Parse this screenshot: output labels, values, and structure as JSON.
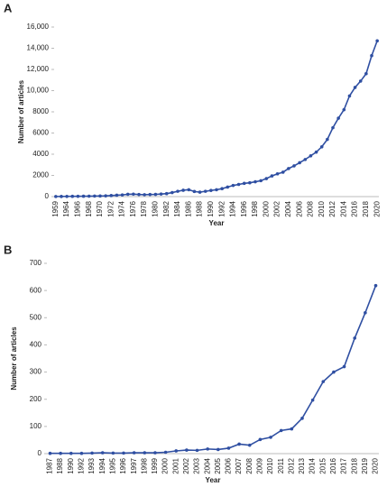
{
  "chart_data": [
    {
      "type": "line",
      "panel": "A",
      "xlabel": "Year",
      "ylabel": "Number of articles",
      "color": "#2f4fa2",
      "categories": [
        "1959",
        null,
        "1964",
        null,
        "1966",
        null,
        "1968",
        null,
        "1970",
        null,
        "1972",
        null,
        "1974",
        null,
        "1976",
        null,
        "1978",
        null,
        "1980",
        null,
        "1982",
        null,
        "1984",
        null,
        "1986",
        null,
        "1988",
        null,
        "1990",
        null,
        "1992",
        null,
        "1994",
        null,
        "1996",
        null,
        "1998",
        null,
        "2000",
        null,
        "2002",
        null,
        "2004",
        null,
        "2006",
        null,
        "2008",
        null,
        "2010",
        null,
        "2012",
        null,
        "2014",
        null,
        "2016",
        null,
        "2018",
        null,
        "2020"
      ],
      "values": [
        10,
        15,
        20,
        25,
        30,
        35,
        40,
        50,
        55,
        70,
        100,
        130,
        160,
        220,
        230,
        200,
        180,
        200,
        210,
        240,
        280,
        380,
        500,
        600,
        650,
        480,
        420,
        500,
        580,
        650,
        750,
        900,
        1050,
        1150,
        1250,
        1300,
        1400,
        1500,
        1700,
        1950,
        2150,
        2300,
        2650,
        2900,
        3200,
        3500,
        3850,
        4200,
        4700,
        5400,
        6500,
        7400,
        8200,
        9500,
        10300,
        10900,
        11600,
        13300,
        14700
      ],
      "ylim": [
        0,
        16000
      ],
      "yticks": [
        0,
        2000,
        4000,
        6000,
        8000,
        {
          "value": 10000,
          "label": "10,000"
        },
        {
          "value": 12000,
          "label": "12,000"
        },
        {
          "value": 14000,
          "label": "14,000"
        },
        {
          "value": 16000,
          "label": "16,000"
        }
      ]
    },
    {
      "type": "line",
      "panel": "B",
      "xlabel": "Year",
      "ylabel": "Number of articles",
      "color": "#2f4fa2",
      "categories": [
        "1987",
        "1988",
        "1990",
        "1992",
        "1993",
        "1994",
        "1995",
        "1996",
        "1997",
        "1998",
        "1999",
        "2000",
        "2001",
        "2002",
        "2003",
        "2004",
        "2005",
        "2006",
        "2007",
        "2008",
        "2009",
        "2010",
        "2011",
        "2012",
        "2013",
        "2014",
        "2015",
        "2016",
        "2017",
        "2018",
        "2019",
        "2020"
      ],
      "values": [
        1,
        1,
        1,
        1,
        2,
        3,
        2,
        2,
        3,
        3,
        3,
        5,
        10,
        13,
        12,
        17,
        15,
        20,
        35,
        31,
        52,
        60,
        85,
        91,
        130,
        197,
        265,
        300,
        320,
        425,
        518,
        618
      ],
      "ylim": [
        0,
        700
      ],
      "yticks": [
        0,
        100,
        200,
        300,
        400,
        500,
        600,
        700
      ]
    }
  ]
}
